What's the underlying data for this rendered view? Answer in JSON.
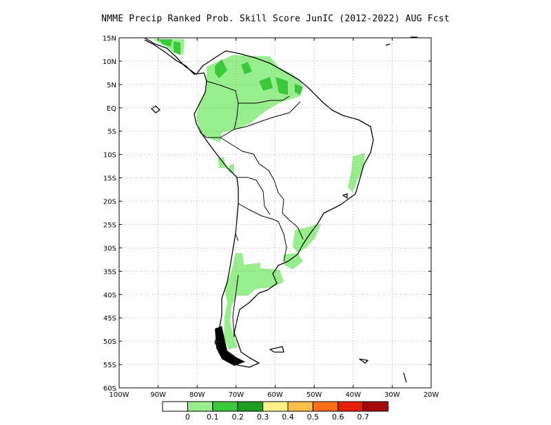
{
  "title": "NMME Precip Ranked Prob. Skill Score JunIC (2012-2022) AUG Fcst",
  "lat_labels": [
    "15N",
    "10N",
    "5N",
    "EQ",
    "5S",
    "10S",
    "15S",
    "20S",
    "25S",
    "30S",
    "35S",
    "40S",
    "45S",
    "50S",
    "55S",
    "60S"
  ],
  "lon_labels": [
    "100W",
    "90W",
    "80W",
    "70W",
    "60W",
    "50W",
    "40W",
    "30W",
    "20W"
  ],
  "grid": "dotted",
  "colorbar": {
    "colors": [
      "#ffffff",
      "#98ee8c",
      "#3cc83c",
      "#1e9e1e",
      "#fff08c",
      "#ffbe46",
      "#ff6e14",
      "#e61e0a",
      "#a50a0a"
    ],
    "labels": [
      "0",
      "0.1",
      "0.2",
      "0.3",
      "0.4",
      "0.5",
      "0.6",
      "0.7"
    ]
  },
  "palette": {
    "light_green": "#98ee8c",
    "mid_green": "#3cc83c",
    "coast": "#000000"
  }
}
